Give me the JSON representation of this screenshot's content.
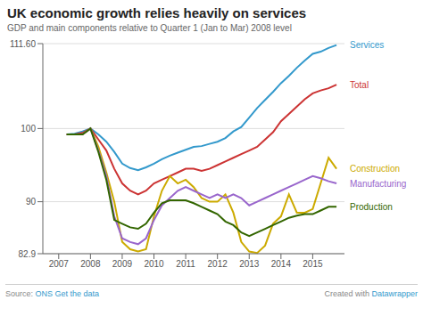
{
  "chart_data": {
    "type": "line",
    "title": "UK economic growth relies heavily on services",
    "subtitle": "GDP and main components relative to Quarter 1 (Jan to Mar) 2008 level",
    "x": [
      2007.25,
      2007.5,
      2007.75,
      2008.0,
      2008.25,
      2008.5,
      2008.75,
      2009.0,
      2009.25,
      2009.5,
      2009.75,
      2010.0,
      2010.25,
      2010.5,
      2010.75,
      2011.0,
      2011.25,
      2011.5,
      2011.75,
      2012.0,
      2012.25,
      2012.5,
      2012.75,
      2013.0,
      2013.25,
      2013.5,
      2013.75,
      2014.0,
      2014.25,
      2014.5,
      2014.75,
      2015.0,
      2015.25,
      2015.5,
      2015.75
    ],
    "series": [
      {
        "name": "Services",
        "color": "#3399cc",
        "values": [
          99.2,
          99.3,
          99.6,
          100.0,
          99.2,
          98.2,
          96.8,
          95.2,
          94.6,
          94.3,
          94.7,
          95.2,
          95.8,
          96.3,
          96.7,
          97.1,
          97.5,
          97.6,
          97.9,
          98.2,
          98.7,
          99.6,
          100.2,
          101.5,
          102.8,
          103.9,
          105.0,
          106.2,
          107.2,
          108.3,
          109.3,
          110.2,
          110.5,
          111.0,
          111.4
        ]
      },
      {
        "name": "Total",
        "color": "#cc3333",
        "values": [
          99.2,
          99.2,
          99.4,
          100.0,
          98.5,
          97.0,
          94.5,
          92.5,
          91.5,
          91.0,
          91.5,
          92.5,
          93.0,
          93.5,
          94.0,
          94.5,
          94.5,
          94.2,
          94.5,
          95.0,
          95.5,
          96.0,
          96.5,
          97.0,
          97.5,
          98.5,
          99.5,
          101.0,
          102.0,
          103.0,
          104.0,
          104.8,
          105.2,
          105.5,
          106.0
        ]
      },
      {
        "name": "Construction",
        "color": "#ccaa00",
        "values": [
          99.2,
          99.2,
          99.2,
          100.0,
          97.5,
          94.0,
          90.0,
          84.5,
          83.5,
          83.2,
          83.5,
          88.0,
          91.5,
          93.5,
          92.5,
          93.0,
          92.0,
          90.5,
          90.0,
          90.0,
          91.0,
          88.5,
          84.5,
          83.2,
          83.0,
          84.0,
          87.0,
          88.0,
          91.0,
          88.5,
          88.5,
          89.0,
          92.5,
          96.0,
          94.5
        ]
      },
      {
        "name": "Manufacturing",
        "color": "#9966cc",
        "values": [
          99.2,
          99.2,
          99.2,
          100.0,
          97.0,
          93.5,
          88.0,
          85.0,
          84.5,
          84.2,
          85.0,
          87.5,
          89.5,
          90.5,
          91.5,
          92.0,
          91.5,
          91.0,
          90.5,
          91.0,
          90.5,
          91.0,
          90.5,
          89.5,
          90.0,
          90.5,
          91.0,
          91.5,
          92.0,
          92.5,
          93.0,
          93.5,
          93.2,
          92.8,
          92.5
        ]
      },
      {
        "name": "Production",
        "color": "#336600",
        "values": [
          99.2,
          99.2,
          99.2,
          100.0,
          96.8,
          93.0,
          87.5,
          87.0,
          86.5,
          86.3,
          87.0,
          88.5,
          89.8,
          90.2,
          90.2,
          90.2,
          89.8,
          89.3,
          88.8,
          88.3,
          87.3,
          86.8,
          85.8,
          85.3,
          85.8,
          86.3,
          86.8,
          87.3,
          87.8,
          88.1,
          88.3,
          88.3,
          88.8,
          89.3,
          89.3
        ]
      }
    ],
    "xlim": [
      2006.5,
      2016.0
    ],
    "xticks": [
      2007,
      2008,
      2009,
      2010,
      2011,
      2012,
      2013,
      2014,
      2015
    ],
    "ylim": [
      82.9,
      111.6
    ],
    "yticks": [
      82.9,
      90,
      100,
      {
        "value": 111.6,
        "label": "111.60"
      }
    ],
    "grid": true,
    "annotations": [
      "Source:",
      "ONS",
      "Get the data",
      "Created with",
      "Datawrapper"
    ]
  }
}
